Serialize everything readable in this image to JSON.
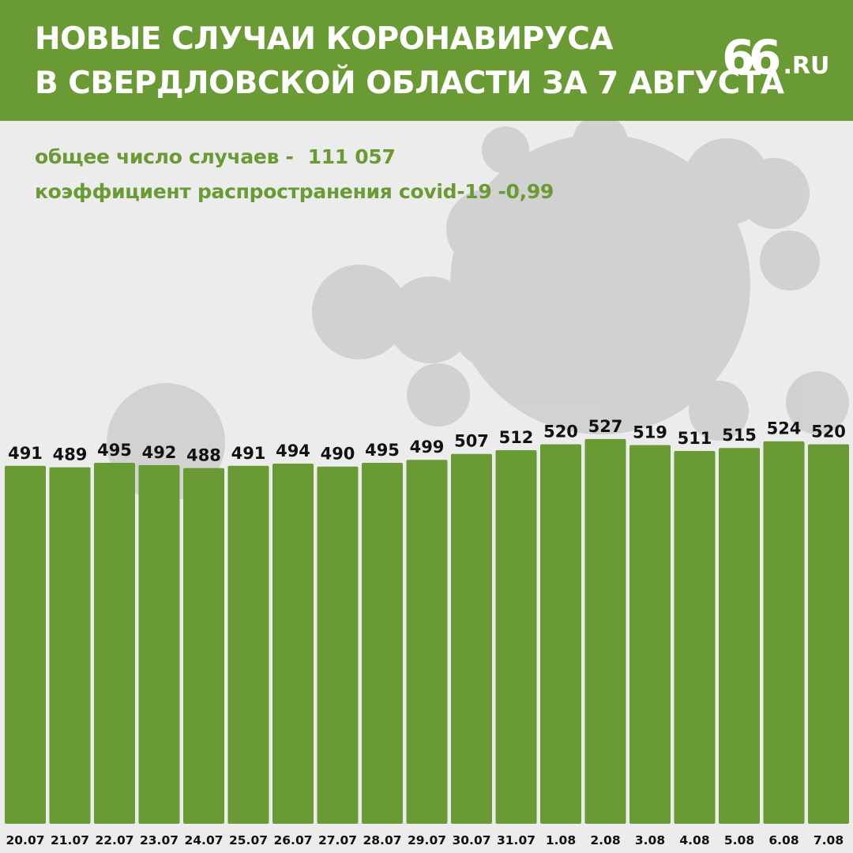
{
  "header": {
    "title_line1": "НОВЫЕ СЛУЧАИ КОРОНАВИРУСА",
    "title_line2": "В СВЕРДЛОВСКОЙ ОБЛАСТИ ЗА 7 АВГУСТА",
    "logo_number": "66",
    "logo_domain": ".RU"
  },
  "stats": {
    "total_label": "общее число случаев -",
    "total_value": "111 057",
    "rate_label": "коэффициент распространения covid-19",
    "rate_value": "-0,99"
  },
  "colors": {
    "accent": "#6a9a33",
    "background": "#ececec",
    "text_dark": "#111111"
  },
  "chart_data": {
    "type": "bar",
    "title": "НОВЫЕ СЛУЧАИ КОРОНАВИРУСА В СВЕРДЛОВСКОЙ ОБЛАСТИ ЗА 7 АВГУСТА",
    "categories": [
      "20.07",
      "21.07",
      "22.07",
      "23.07",
      "24.07",
      "25.07",
      "26.07",
      "27.07",
      "28.07",
      "29.07",
      "30.07",
      "31.07",
      "1.08",
      "2.08",
      "3.08",
      "4.08",
      "5.08",
      "6.08",
      "7.08"
    ],
    "values": [
      491,
      489,
      495,
      492,
      488,
      491,
      494,
      490,
      495,
      499,
      507,
      512,
      520,
      527,
      519,
      511,
      515,
      524,
      520
    ],
    "xlabel": "",
    "ylabel": "",
    "grid": false,
    "data_labels": true
  }
}
